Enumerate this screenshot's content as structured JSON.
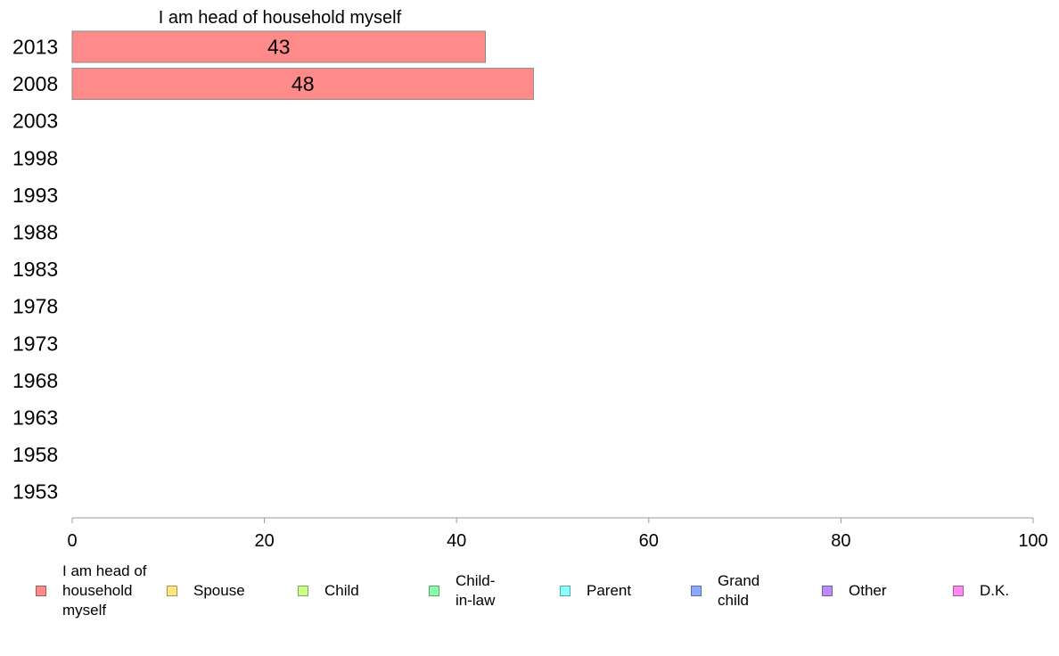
{
  "chart_data": {
    "type": "bar",
    "orientation": "horizontal",
    "title": "I am head of household myself",
    "categories": [
      "2013",
      "2008",
      "2003",
      "1998",
      "1993",
      "1988",
      "1983",
      "1978",
      "1973",
      "1968",
      "1963",
      "1958",
      "1953"
    ],
    "series": [
      {
        "name": "I am head of household myself",
        "color": "#ff8a8a",
        "values": [
          43,
          48,
          null,
          null,
          null,
          null,
          null,
          null,
          null,
          null,
          null,
          null,
          null
        ]
      }
    ],
    "xlim": [
      0,
      100
    ],
    "xticks": [
      0,
      20,
      40,
      60,
      80,
      100
    ],
    "grid": false,
    "legend_position": "bottom"
  },
  "legend": [
    {
      "label": "I am head of household myself",
      "color": "#ff8a8a"
    },
    {
      "label": "Spouse",
      "color": "#ffe680"
    },
    {
      "label": "Child",
      "color": "#ccff8a"
    },
    {
      "label": "Child-in-law",
      "color": "#8affaa"
    },
    {
      "label": "Parent",
      "color": "#8affff"
    },
    {
      "label": "Grand child",
      "color": "#8aaaff"
    },
    {
      "label": "Other",
      "color": "#bb8aff"
    },
    {
      "label": "D.K.",
      "color": "#ff8aee"
    }
  ]
}
